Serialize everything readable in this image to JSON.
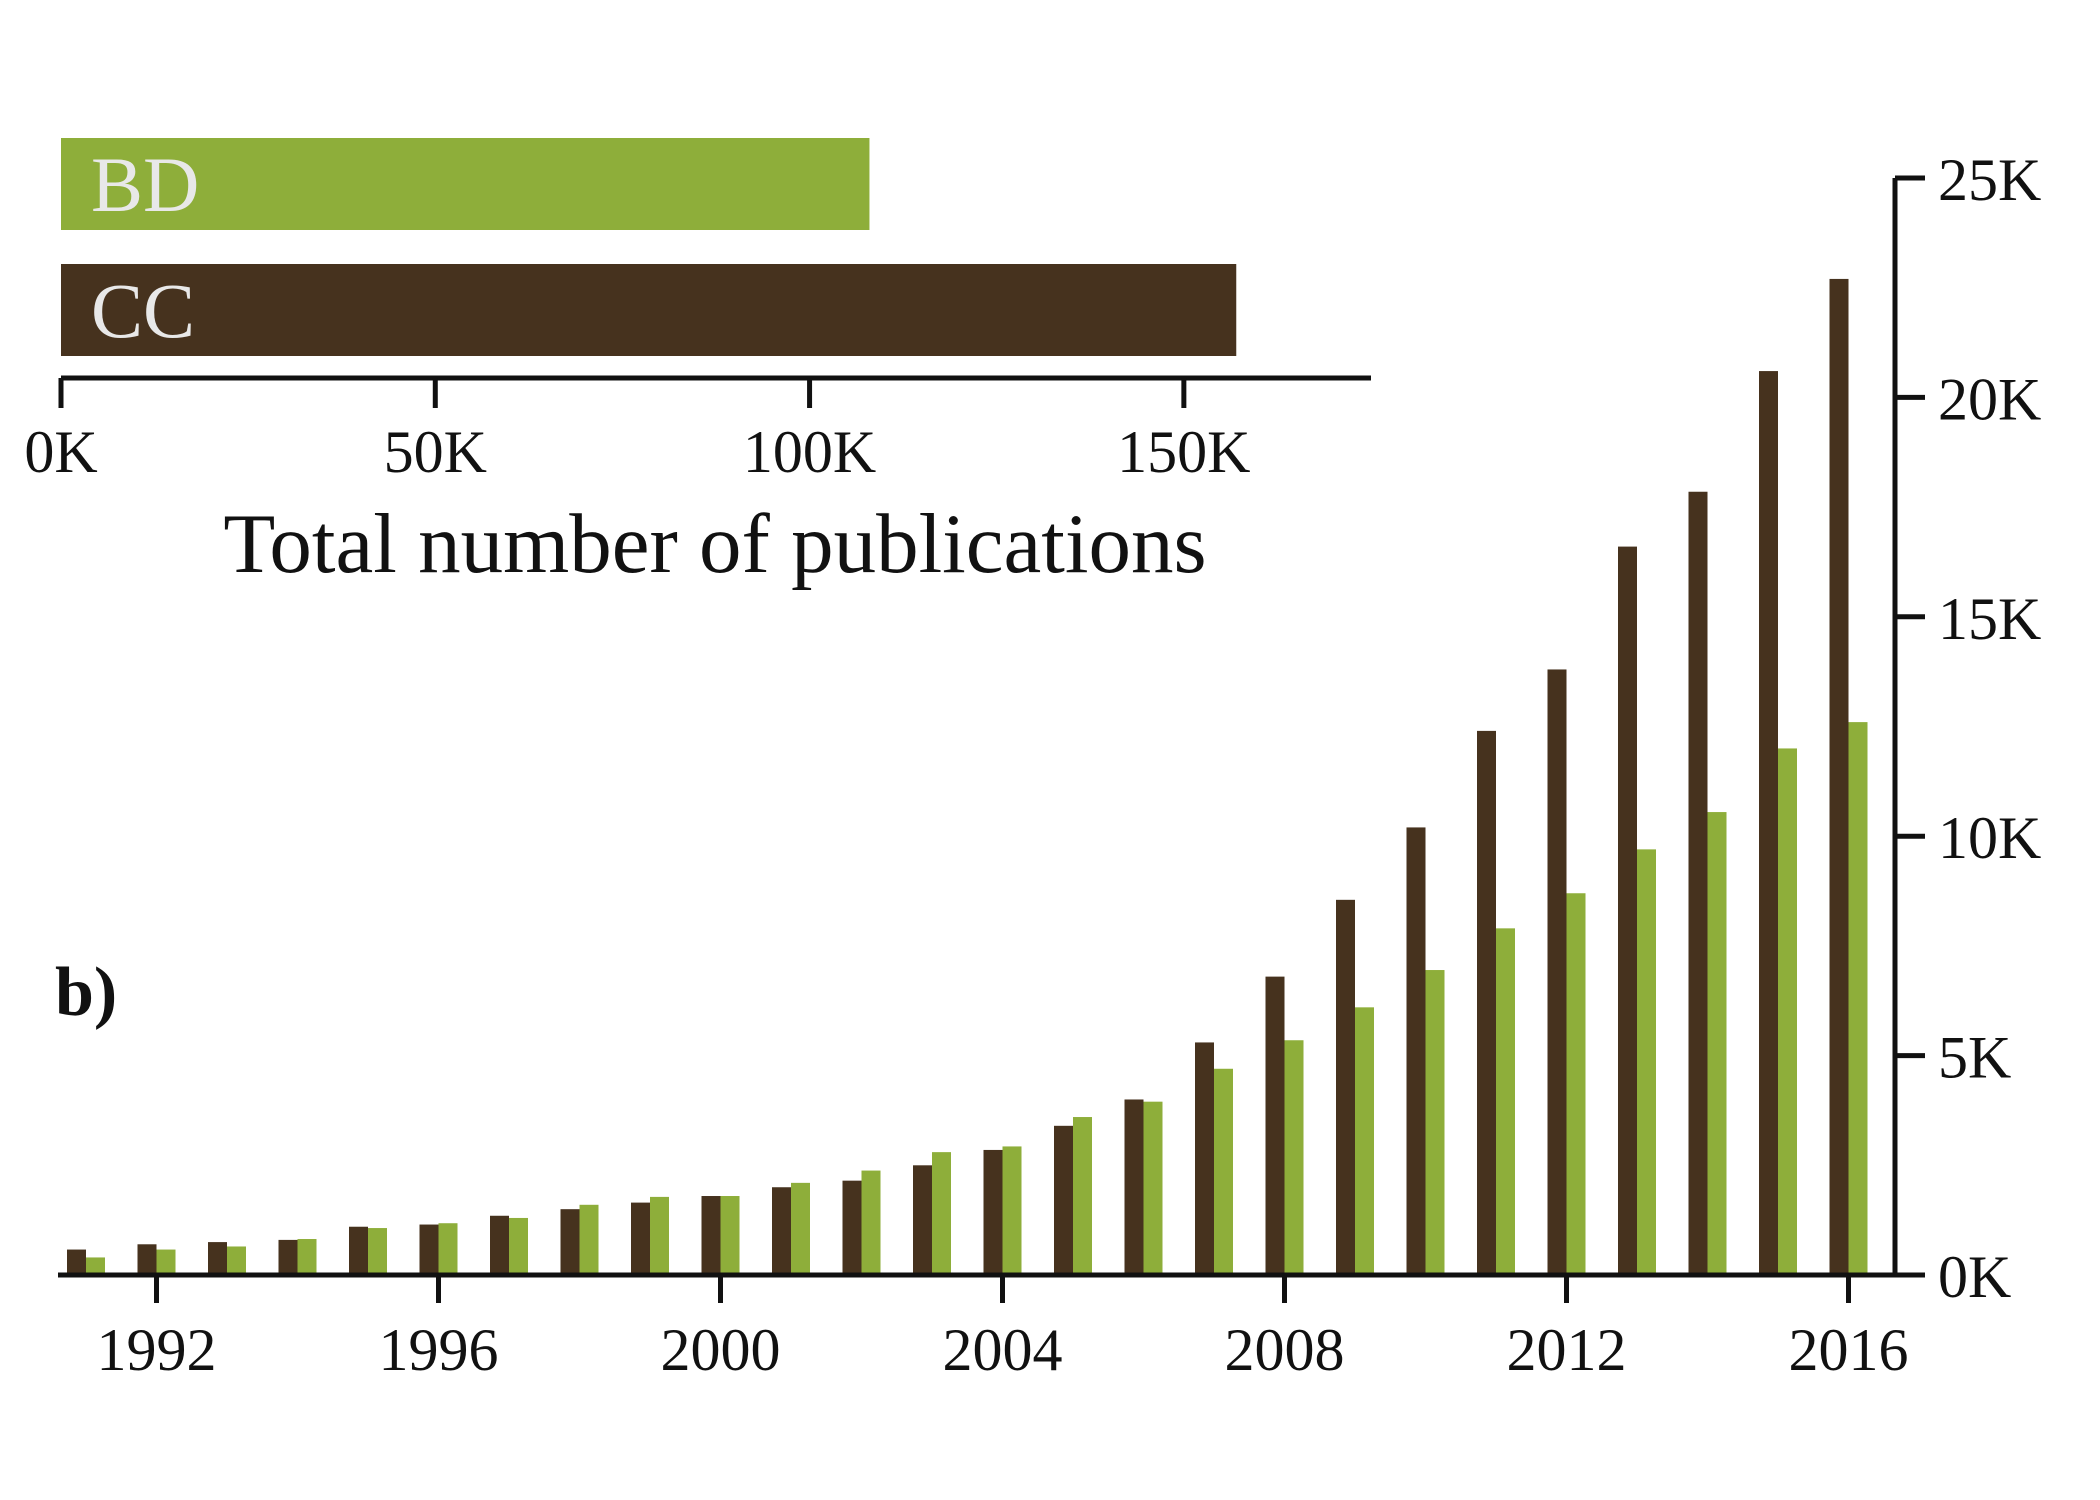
{
  "colors": {
    "cc": "#46321e",
    "bd": "#8eae3a",
    "bar_label_text": "#e8e8e8",
    "axis": "#111111"
  },
  "panel_label": "b)",
  "chart_data": [
    {
      "type": "bar",
      "orientation": "horizontal",
      "categories": [
        "BD",
        "CC"
      ],
      "values": [
        108000,
        157000
      ],
      "xlabel": "Total number of publications",
      "xlim": [
        0,
        175000
      ],
      "xticks": [
        0,
        50000,
        100000,
        150000
      ],
      "xtick_labels": [
        "0K",
        "50K",
        "100K",
        "150K"
      ],
      "grid": false
    },
    {
      "type": "bar",
      "orientation": "vertical",
      "x": [
        1991,
        1992,
        1993,
        1994,
        1995,
        1996,
        1997,
        1998,
        1999,
        2000,
        2001,
        2002,
        2003,
        2004,
        2005,
        2006,
        2007,
        2008,
        2009,
        2010,
        2011,
        2012,
        2013,
        2014,
        2015,
        2016
      ],
      "series": [
        {
          "name": "CC",
          "values": [
            580,
            700,
            750,
            800,
            1100,
            1150,
            1350,
            1500,
            1650,
            1800,
            2000,
            2150,
            2500,
            2850,
            3400,
            4000,
            5300,
            6800,
            8550,
            10200,
            12400,
            13800,
            16600,
            17850,
            20600,
            22700
          ]
        },
        {
          "name": "BD",
          "values": [
            400,
            580,
            650,
            820,
            1070,
            1180,
            1300,
            1600,
            1780,
            1800,
            2100,
            2380,
            2800,
            2930,
            3600,
            3950,
            4700,
            5350,
            6100,
            6950,
            7900,
            8700,
            9700,
            10550,
            12000,
            12600
          ]
        }
      ],
      "xticks": [
        1992,
        1996,
        2000,
        2004,
        2008,
        2012,
        2016
      ],
      "xtick_labels": [
        "1992",
        "1996",
        "2000",
        "2004",
        "2008",
        "2012",
        "2016"
      ],
      "ylim": [
        0,
        25000
      ],
      "yticks": [
        0,
        5000,
        10000,
        15000,
        20000,
        25000
      ],
      "ytick_labels": [
        "0K",
        "5K",
        "10K",
        "15K",
        "20K",
        "25K"
      ],
      "yaxis_position": "right",
      "grid": false
    }
  ]
}
